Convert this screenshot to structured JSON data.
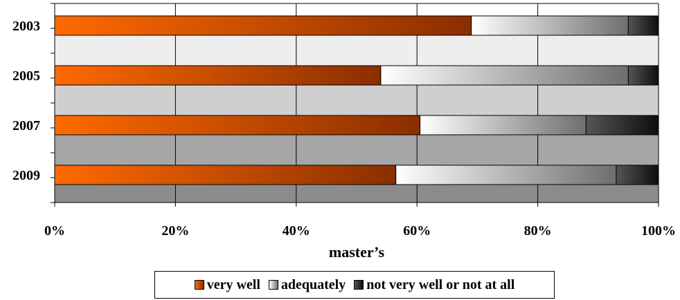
{
  "chart_data": {
    "type": "bar",
    "orientation": "horizontal",
    "stacked": true,
    "percent": true,
    "categories": [
      "2003",
      "2005",
      "2007",
      "2009"
    ],
    "series": [
      {
        "name": "very well",
        "values": [
          69,
          54,
          60.5,
          56.5
        ],
        "color": "#d9540a"
      },
      {
        "name": "adequately",
        "values": [
          26,
          41,
          27.5,
          36.5
        ],
        "color": "#c8c8c8"
      },
      {
        "name": "not very well or not at all",
        "values": [
          5,
          5,
          12,
          7
        ],
        "color": "#2a2a2a"
      }
    ],
    "xlabel": "master’s",
    "ylabel": "",
    "xlim": [
      0,
      100
    ],
    "xticks": [
      "0%",
      "20%",
      "40%",
      "60%",
      "80%",
      "100%"
    ],
    "grid": true,
    "legend_position": "bottom-center"
  }
}
